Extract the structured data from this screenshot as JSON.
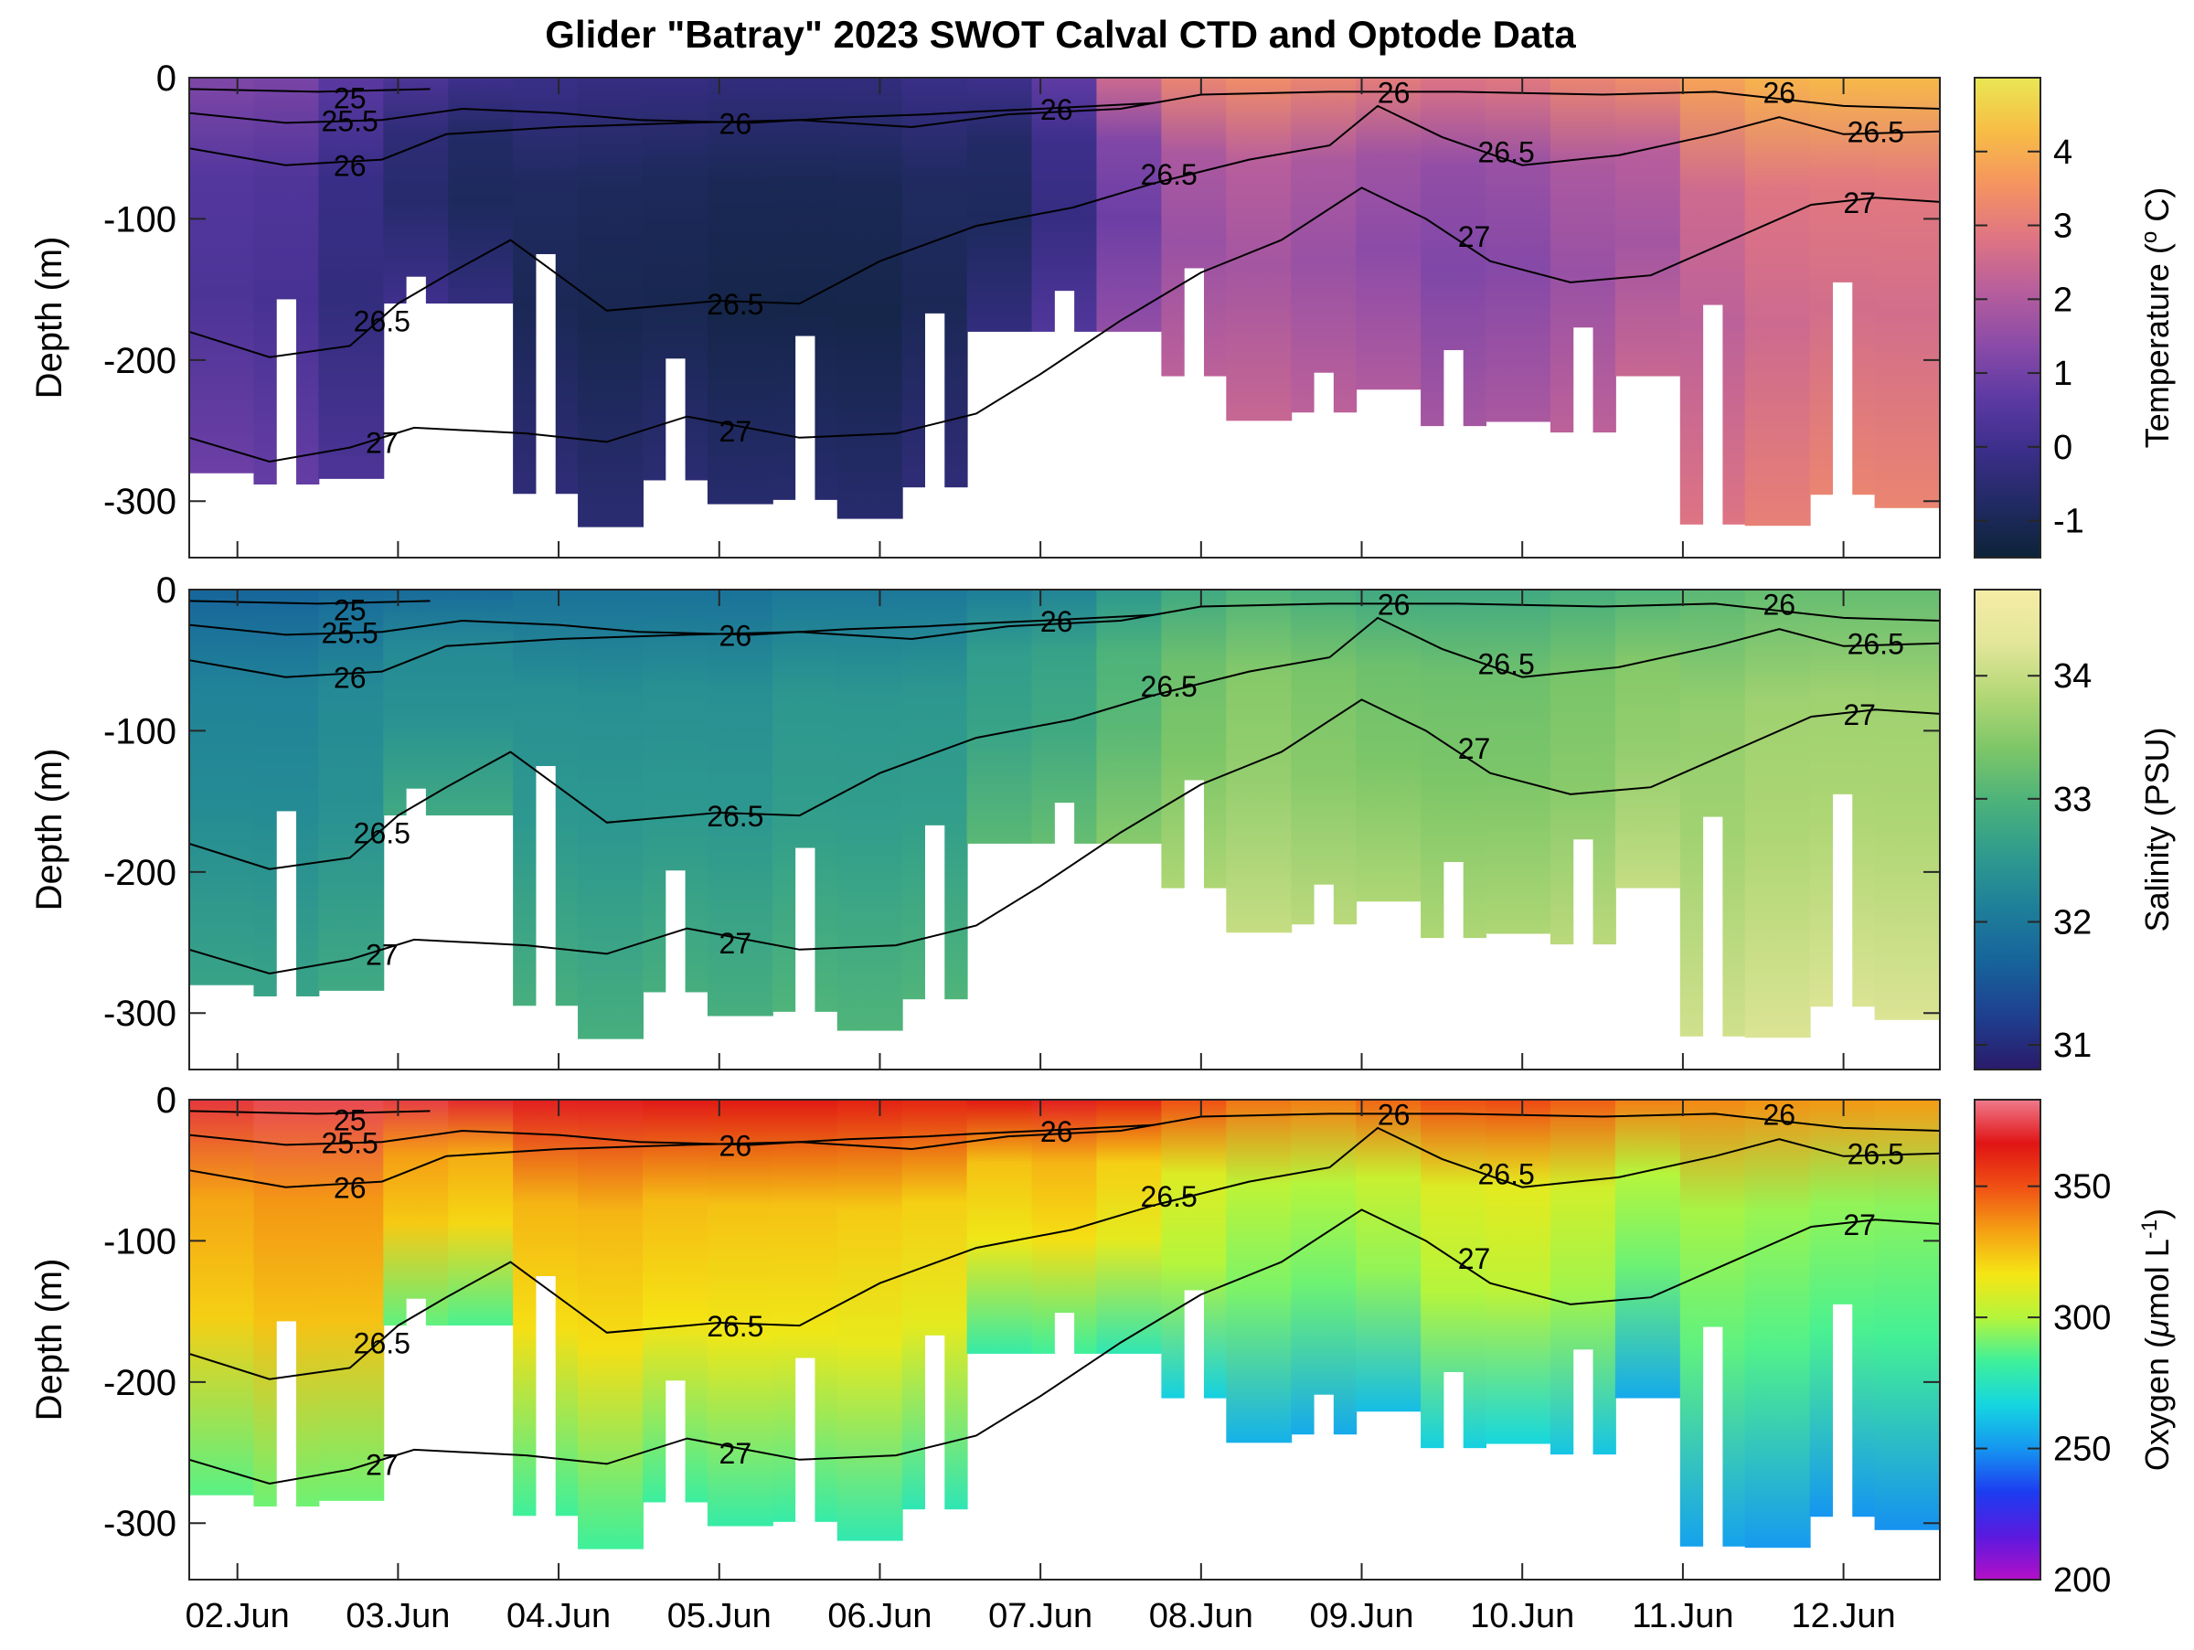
{
  "chart_data": {
    "title": "Glider \"Batray\" 2023 SWOT Calval CTD and Optode Data",
    "type": "heatmap",
    "x": {
      "ticks": [
        "02.Jun",
        "03.Jun",
        "04.Jun",
        "05.Jun",
        "06.Jun",
        "07.Jun",
        "08.Jun",
        "09.Jun",
        "10.Jun",
        "11.Jun",
        "12.Jun"
      ],
      "tick_days": [
        2,
        3,
        4,
        5,
        6,
        7,
        8,
        9,
        10,
        11,
        12
      ],
      "range": [
        1.7,
        12.6
      ]
    },
    "y": {
      "label": "Depth (m)",
      "ticks": [
        0,
        -100,
        -200,
        -300
      ],
      "range": [
        -340,
        0
      ]
    },
    "contour_lines": [
      {
        "label": "25",
        "points": [
          [
            1.7,
            -8
          ],
          [
            2.5,
            -10
          ],
          [
            3.2,
            -8
          ]
        ]
      },
      {
        "label": "25.5",
        "points": [
          [
            1.7,
            -25
          ],
          [
            2.3,
            -32
          ],
          [
            2.9,
            -30
          ],
          [
            3.4,
            -22
          ],
          [
            4.0,
            -25
          ],
          [
            4.5,
            -30
          ],
          [
            5.2,
            -32
          ],
          [
            5.8,
            -28
          ],
          [
            6.3,
            -26
          ],
          [
            6.6,
            -24
          ],
          [
            7.0,
            -22
          ],
          [
            7.7,
            -18
          ]
        ]
      },
      {
        "label": "26",
        "points": [
          [
            1.7,
            -50
          ],
          [
            2.3,
            -62
          ],
          [
            2.9,
            -58
          ],
          [
            3.3,
            -40
          ],
          [
            4.0,
            -35
          ],
          [
            4.8,
            -32
          ],
          [
            5.5,
            -30
          ],
          [
            6.2,
            -35
          ],
          [
            6.8,
            -26
          ],
          [
            7.5,
            -22
          ],
          [
            8.0,
            -12
          ],
          [
            8.8,
            -10
          ],
          [
            9.6,
            -10
          ],
          [
            10.5,
            -12
          ],
          [
            11.2,
            -10
          ],
          [
            12.0,
            -20
          ],
          [
            12.6,
            -22
          ]
        ]
      },
      {
        "label": "26.5",
        "points": [
          [
            1.7,
            -180
          ],
          [
            2.2,
            -198
          ],
          [
            2.7,
            -190
          ],
          [
            3.0,
            -160
          ],
          [
            3.3,
            -140
          ],
          [
            3.7,
            -115
          ],
          [
            4.0,
            -140
          ],
          [
            4.3,
            -165
          ],
          [
            5.0,
            -158
          ],
          [
            5.5,
            -160
          ],
          [
            6.0,
            -130
          ],
          [
            6.6,
            -105
          ],
          [
            7.2,
            -92
          ],
          [
            7.7,
            -75
          ],
          [
            8.3,
            -58
          ],
          [
            8.8,
            -48
          ],
          [
            9.1,
            -20
          ],
          [
            9.5,
            -42
          ],
          [
            10.0,
            -62
          ],
          [
            10.6,
            -55
          ],
          [
            11.2,
            -40
          ],
          [
            11.6,
            -28
          ],
          [
            12.0,
            -40
          ],
          [
            12.6,
            -38
          ]
        ]
      },
      {
        "label": "27",
        "points": [
          [
            1.7,
            -255
          ],
          [
            2.2,
            -272
          ],
          [
            2.7,
            -262
          ],
          [
            3.1,
            -248
          ],
          [
            3.8,
            -252
          ],
          [
            4.3,
            -258
          ],
          [
            4.8,
            -240
          ],
          [
            5.5,
            -255
          ],
          [
            6.1,
            -252
          ],
          [
            6.6,
            -238
          ],
          [
            7.0,
            -210
          ],
          [
            7.5,
            -172
          ],
          [
            8.0,
            -138
          ],
          [
            8.5,
            -115
          ],
          [
            9.0,
            -78
          ],
          [
            9.4,
            -100
          ],
          [
            9.8,
            -130
          ],
          [
            10.3,
            -145
          ],
          [
            10.8,
            -140
          ],
          [
            11.3,
            -115
          ],
          [
            11.8,
            -90
          ],
          [
            12.2,
            -85
          ],
          [
            12.6,
            -88
          ]
        ]
      }
    ],
    "contour_label_positions": [
      {
        "label": "25",
        "day": 2.7,
        "depth": -14
      },
      {
        "label": "25.5",
        "day": 2.7,
        "depth": -30
      },
      {
        "label": "26",
        "day": 2.7,
        "depth": -62
      },
      {
        "label": "26",
        "day": 5.1,
        "depth": -32
      },
      {
        "label": "26",
        "day": 7.1,
        "depth": -22
      },
      {
        "label": "26",
        "day": 9.2,
        "depth": -10
      },
      {
        "label": "26",
        "day": 11.6,
        "depth": -10
      },
      {
        "label": "26.5",
        "day": 2.9,
        "depth": -172
      },
      {
        "label": "26.5",
        "day": 5.1,
        "depth": -160
      },
      {
        "label": "26.5",
        "day": 7.8,
        "depth": -68
      },
      {
        "label": "26.5",
        "day": 9.9,
        "depth": -52
      },
      {
        "label": "26.5",
        "day": 12.2,
        "depth": -38
      },
      {
        "label": "27",
        "day": 2.9,
        "depth": -258
      },
      {
        "label": "27",
        "day": 5.1,
        "depth": -250
      },
      {
        "label": "27",
        "day": 9.7,
        "depth": -112
      },
      {
        "label": "27",
        "day": 12.1,
        "depth": -88
      }
    ],
    "panels": [
      {
        "variable": "temperature",
        "colorbar_label": "Temperature (°C)",
        "colorbar_label_parts": {
          "main": "Temperature (",
          "sup": "o",
          "tail": " C)"
        },
        "colorbar_ticks": [
          "-1",
          "0",
          "1",
          "2",
          "3",
          "4"
        ],
        "colorbar_tick_values": [
          -1,
          0,
          1,
          2,
          3,
          4
        ],
        "colorbar_range": [
          -1.5,
          5.0
        ],
        "colormap": [
          "#0c2338",
          "#212a63",
          "#3b2e8a",
          "#5d3aa3",
          "#8b4ba8",
          "#b75e9c",
          "#df7583",
          "#f59460",
          "#f7bd45",
          "#e9e754"
        ],
        "column_values": [
          0.3,
          0.2,
          -0.3,
          -0.6,
          -0.9,
          -1.0,
          -1.1,
          -1.1,
          -1.2,
          -1.2,
          -1.2,
          -1.0,
          -0.9,
          -0.2,
          0.9,
          1.6,
          1.8,
          1.6,
          1.4,
          1.2,
          1.3,
          1.6,
          1.8,
          2.2,
          2.5,
          2.6,
          2.6
        ]
      },
      {
        "variable": "salinity",
        "colorbar_label": "Salinity (PSU)",
        "colorbar_ticks": [
          "31",
          "32",
          "33",
          "34"
        ],
        "colorbar_tick_values": [
          31,
          32,
          33,
          34
        ],
        "colorbar_range": [
          30.8,
          34.7
        ],
        "colormap": [
          "#2a1a6a",
          "#1f3f8f",
          "#16639b",
          "#1e7e9a",
          "#2e9a8e",
          "#4bb27b",
          "#7cc668",
          "#b2d775",
          "#e3e69a",
          "#f6eca6"
        ],
        "column_values": [
          32.3,
          32.3,
          32.4,
          32.4,
          32.4,
          32.5,
          32.5,
          32.5,
          32.5,
          32.6,
          32.6,
          32.6,
          32.7,
          32.8,
          33.1,
          33.4,
          33.6,
          33.5,
          33.4,
          33.4,
          33.4,
          33.5,
          33.6,
          33.7,
          33.8,
          33.8,
          33.8
        ]
      },
      {
        "variable": "oxygen",
        "colorbar_label": "Oxygen (µmol L⁻¹)",
        "colorbar_label_parts": {
          "main": "Oxygen (",
          "mu": "μ",
          "tail": "mol L",
          "sup": "-1",
          "end": ")"
        },
        "colorbar_ticks": [
          "200",
          "250",
          "300",
          "350"
        ],
        "colorbar_tick_values": [
          200,
          250,
          300,
          350
        ],
        "colorbar_range": [
          200,
          383
        ],
        "colormap": [
          "#b40fc7",
          "#5a1ae0",
          "#1d3cf0",
          "#1596f0",
          "#15d6e0",
          "#3ef09a",
          "#b4f53c",
          "#f5e614",
          "#f5a014",
          "#f05014",
          "#e01414",
          "#f07a8c"
        ],
        "column_values": [
          322,
          325,
          325,
          323,
          320,
          318,
          318,
          317,
          315,
          315,
          313,
          312,
          315,
          318,
          312,
          300,
          292,
          290,
          295,
          300,
          302,
          297,
          290,
          288,
          286,
          285,
          284
        ]
      }
    ]
  }
}
